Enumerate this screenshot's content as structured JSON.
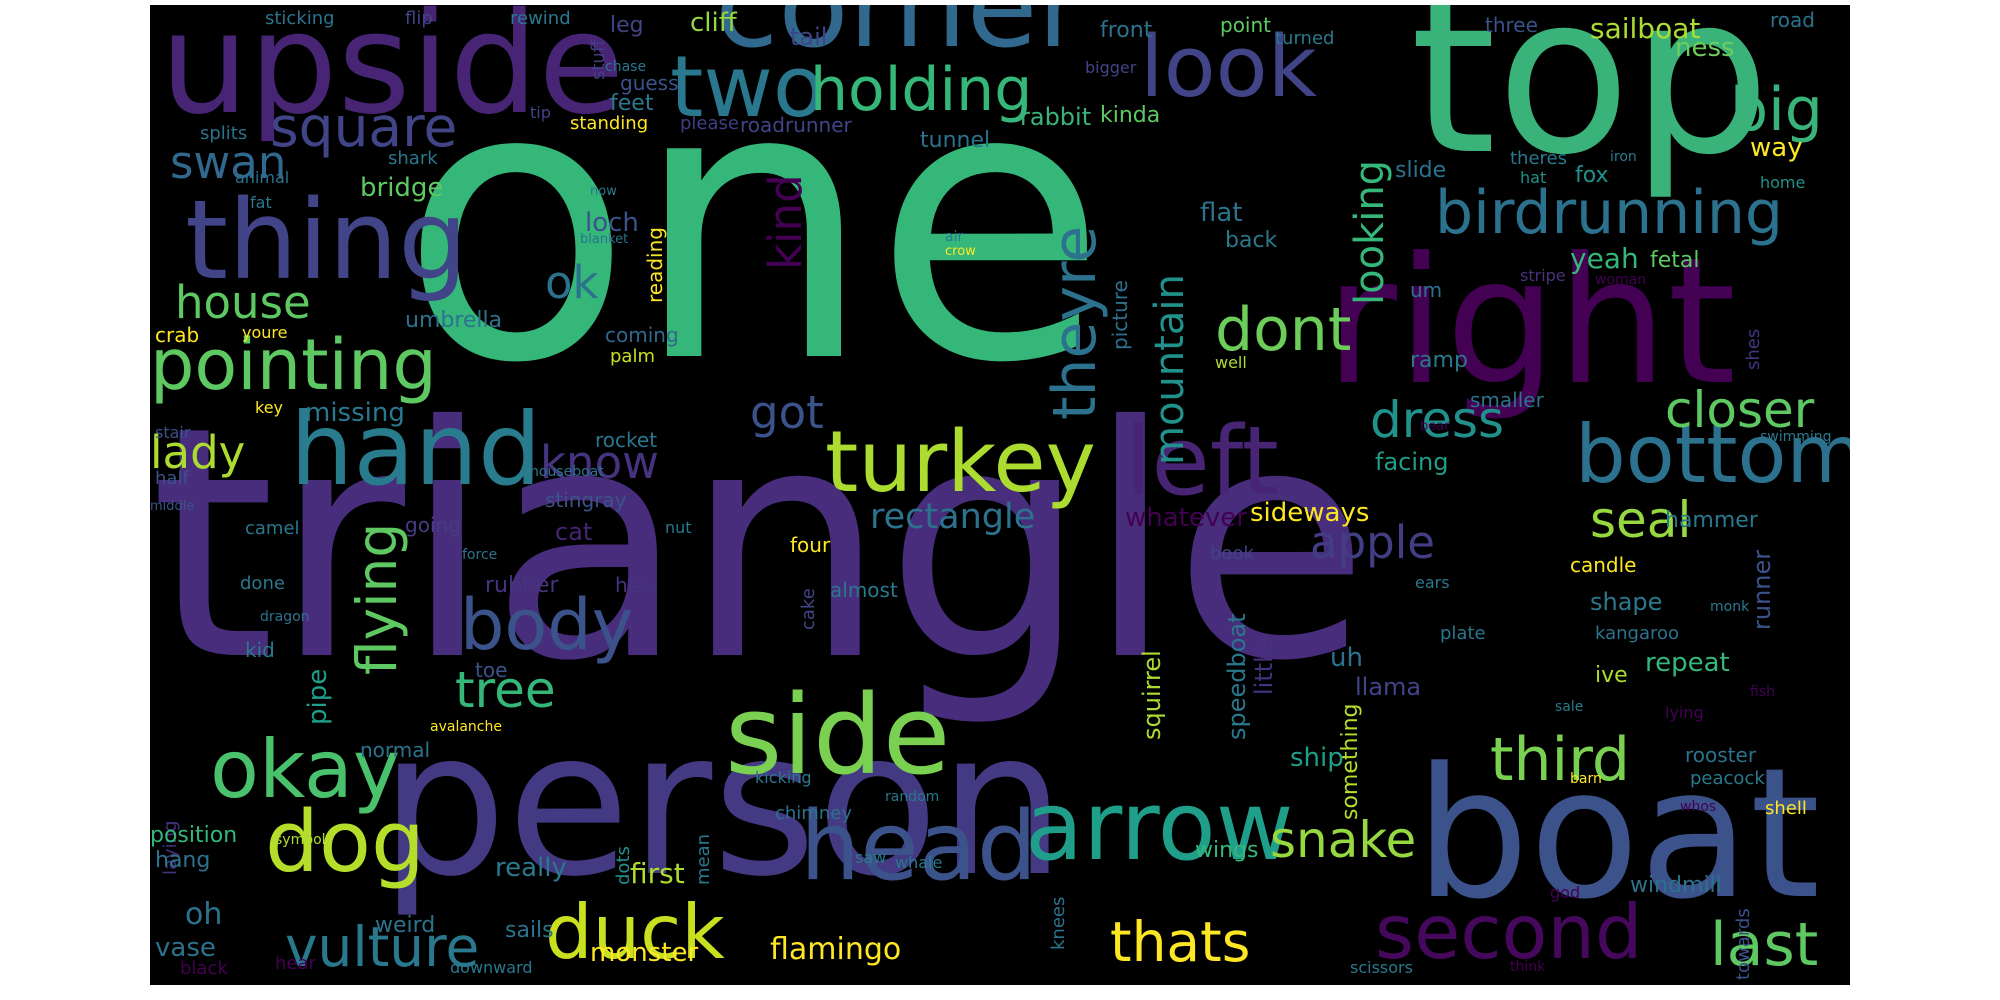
{
  "palette": {
    "background": "#000000",
    "purple_dark": "#440154",
    "purple": "#472d7b",
    "indigo": "#3b528b",
    "blue": "#2c728e",
    "teal": "#21918c",
    "green": "#28ae80",
    "green_light": "#5ec962",
    "lime": "#addc30",
    "yellow": "#fde725"
  },
  "words": {
    "one": "one",
    "triangle": "triangle",
    "person": "person",
    "top": "top",
    "right": "right",
    "boat": "boat",
    "upside": "upside",
    "corner": "corner",
    "two": "two",
    "look": "look",
    "holding": "holding",
    "big": "big",
    "thing": "thing",
    "square": "square",
    "swan": "swan",
    "birdrunning": "birdrunning",
    "pointing": "pointing",
    "hand": "hand",
    "turkey": "turkey",
    "left": "left",
    "bottom": "bottom",
    "side": "side",
    "body": "body",
    "okay": "okay",
    "dog": "dog",
    "head": "head",
    "arrow": "arrow",
    "second": "second",
    "duck": "duck",
    "vulture": "vulture",
    "thats": "thats",
    "third": "third",
    "last": "last",
    "snake": "snake",
    "dont": "dont",
    "dress": "dress",
    "closer": "closer",
    "seal": "seal",
    "house": "house",
    "tree": "tree",
    "know": "know",
    "lady": "lady",
    "flying": "flying",
    "mountain": "mountain",
    "theyre": "theyre",
    "kind": "kind",
    "ok": "ok",
    "got": "got",
    "looking": "looking",
    "apple": "apple",
    "rectangle": "rectangle",
    "whatever": "whatever",
    "sideways": "sideways",
    "facing": "facing",
    "cliff": "cliff",
    "tail": "tail",
    "leg": "leg",
    "feet": "feet",
    "rabbit": "rabbit",
    "kinda": "kinda",
    "tunnel": "tunnel",
    "roadrunner": "roadrunner",
    "please": "please",
    "guess": "guess",
    "front": "front",
    "point": "point",
    "turned": "turned",
    "three": "three",
    "road": "road",
    "sailboat": "sailboat",
    "ness": "ness",
    "way": "way",
    "slide": "slide",
    "theres": "theres",
    "fox": "fox",
    "iron": "iron",
    "hat": "hat",
    "home": "home",
    "yeah": "yeah",
    "fetal": "fetal",
    "stripe": "stripe",
    "woman": "woman",
    "ramp": "ramp",
    "smaller": "smaller",
    "shes": "shes",
    "swimming": "swimming",
    "bridge": "bridge",
    "loch": "loch",
    "reading": "reading",
    "umbrella": "umbrella",
    "coming": "coming",
    "palm": "palm",
    "crab": "crab",
    "youre": "youre",
    "missing": "missing",
    "stair": "stair",
    "key": "key",
    "rocket": "rocket",
    "houseboat": "houseboat",
    "stingray": "stingray",
    "half": "half",
    "middle": "middle",
    "camel": "camel",
    "going": "going",
    "cat": "cat",
    "four": "four",
    "book": "book",
    "hammer": "hammer",
    "candle": "candle",
    "runner": "runner",
    "shape": "shape",
    "kangaroo": "kangaroo",
    "monk": "monk",
    "repeat": "repeat",
    "ive": "ive",
    "fish": "fish",
    "lying": "lying",
    "sale": "sale",
    "rooster": "rooster",
    "peacock": "peacock",
    "barn": "barn",
    "shell": "shell",
    "whos": "whos",
    "windmill": "windmill",
    "towards": "towards",
    "god": "god",
    "scissors": "scissors",
    "think": "think",
    "sticking": "sticking",
    "flip": "flip",
    "rewind": "rewind",
    "chase": "chase",
    "bigger": "bigger",
    "stuff": "stuff",
    "tip": "tip",
    "standing": "standing",
    "splits": "splits",
    "shark": "shark",
    "animal": "animal",
    "fat": "fat",
    "now": "now",
    "blanket": "blanket",
    "air": "air",
    "crow": "crow",
    "picture": "picture",
    "um": "um",
    "flat": "flat",
    "back": "back",
    "well": "well",
    "bear": "bear",
    "done": "done",
    "rubber": "rubber",
    "hes": "hes",
    "cake": "cake",
    "dragon": "dragon",
    "kid": "kid",
    "toe": "toe",
    "pipe": "pipe",
    "almost": "almost",
    "squirrel": "squirrel",
    "speedboat": "speedboat",
    "little": "little",
    "something": "something",
    "uh": "uh",
    "llama": "llama",
    "ears": "ears",
    "plate": "plate",
    "normal": "normal",
    "avalanche": "avalanche",
    "laying": "laying",
    "position": "position",
    "symbol": "symbol",
    "hang": "hang",
    "dots": "dots",
    "mean": "mean",
    "kicking": "kicking",
    "chimney": "chimney",
    "slip": "slip",
    "random": "random",
    "ship": "ship",
    "wings": "wings",
    "really": "really",
    "first": "first",
    "saw": "saw",
    "whale": "whale",
    "knees": "knees",
    "oh": "oh",
    "weird": "weird",
    "vase": "vase",
    "black": "black",
    "hear": "hear",
    "sails": "sails",
    "downward": "downward",
    "monster": "monster",
    "flamingo": "flamingo",
    "nut": "nut",
    "force": "force"
  }
}
